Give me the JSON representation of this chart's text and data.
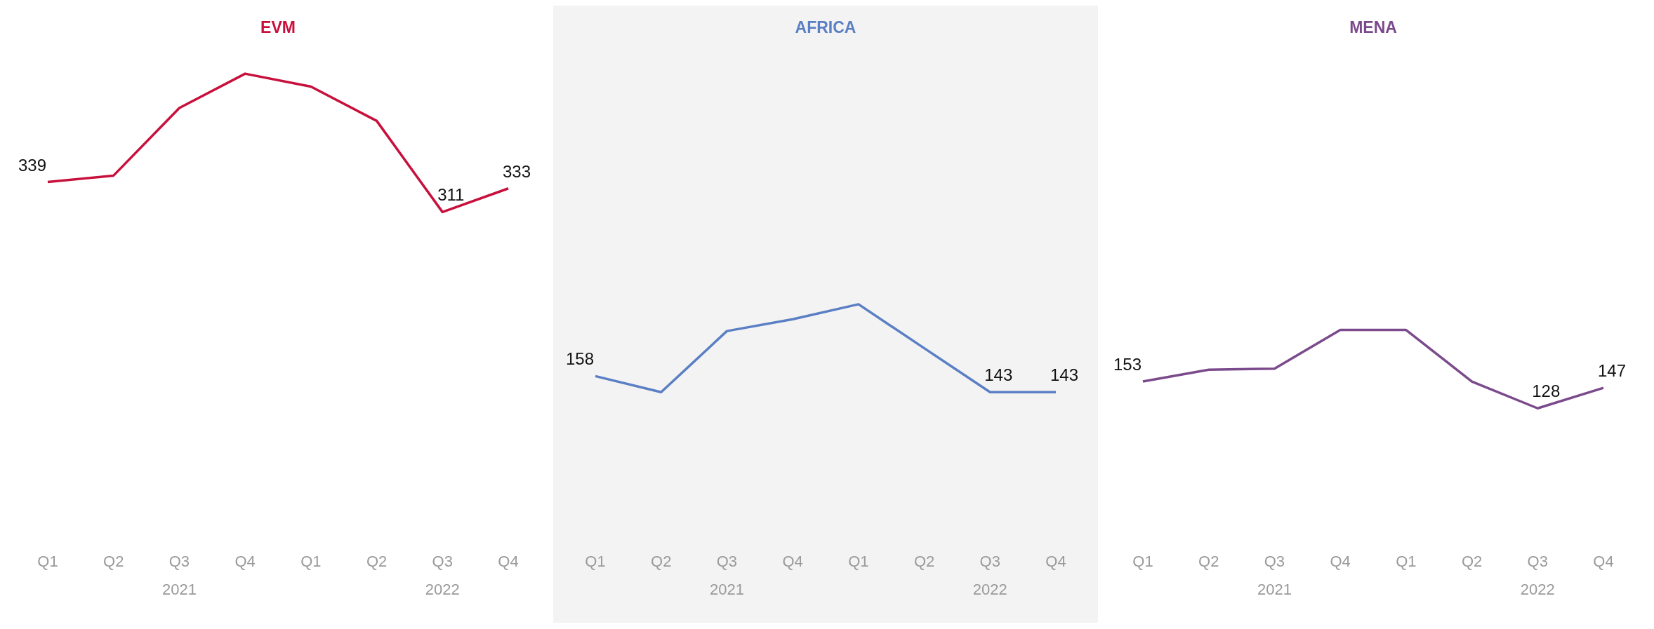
{
  "chart_data": [
    {
      "type": "line",
      "title": "EVM",
      "categories": [
        "Q1",
        "Q2",
        "Q3",
        "Q4",
        "Q1",
        "Q2",
        "Q3",
        "Q4"
      ],
      "annotations": [
        "2021",
        "2022"
      ],
      "series": [
        {
          "color": "#c8103c",
          "values": [
            339,
            345,
            408,
            440,
            428,
            396,
            311,
            333
          ],
          "value_labels": [
            "339",
            null,
            null,
            null,
            null,
            null,
            "311",
            "333"
          ]
        }
      ]
    },
    {
      "type": "line",
      "title": "AFRICA",
      "categories": [
        "Q1",
        "Q2",
        "Q3",
        "Q4",
        "Q1",
        "Q2",
        "Q3",
        "Q4"
      ],
      "annotations": [
        "2021",
        "2022"
      ],
      "series": [
        {
          "color": "#5b7fc4",
          "values": [
            158,
            143,
            200,
            211,
            225,
            184,
            143,
            143
          ],
          "value_labels": [
            "158",
            null,
            null,
            null,
            null,
            null,
            "143",
            "143"
          ]
        }
      ]
    },
    {
      "type": "line",
      "title": "MENA",
      "categories": [
        "Q1",
        "Q2",
        "Q3",
        "Q4",
        "Q1",
        "Q2",
        "Q3",
        "Q4"
      ],
      "annotations": [
        "2021",
        "2022"
      ],
      "series": [
        {
          "color": "#7b4a8c",
          "values": [
            153,
            164,
            165,
            201,
            201,
            153,
            128,
            147
          ],
          "value_labels": [
            "153",
            null,
            null,
            null,
            null,
            null,
            "128",
            "147"
          ]
        }
      ]
    }
  ]
}
